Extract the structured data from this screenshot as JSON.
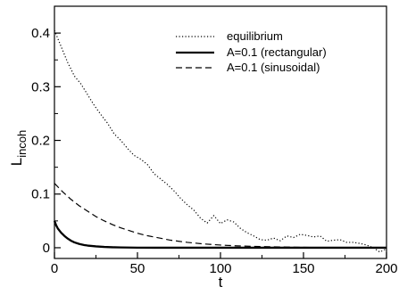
{
  "chart_data": {
    "type": "line",
    "title": "",
    "xlabel": "t",
    "ylabel": {
      "main": "L",
      "sub": "incoh"
    },
    "xlim": [
      0,
      200
    ],
    "ylim": [
      -0.02,
      0.45
    ],
    "xticks": [
      0,
      50,
      100,
      150,
      200
    ],
    "yticks": [
      0,
      0.1,
      0.2,
      0.3,
      0.4
    ],
    "xtick_labels": [
      "0",
      "50",
      "100",
      "150",
      "200"
    ],
    "ytick_labels": [
      "0",
      "0.1",
      "0.2",
      "0.3",
      "0.4"
    ],
    "grid": false,
    "legend_position": "top-right",
    "series": [
      {
        "name": "equilibrium",
        "style": "dotted",
        "color": "#000000",
        "x": [
          0,
          4,
          8,
          12,
          16,
          20,
          24,
          28,
          32,
          36,
          40,
          44,
          48,
          52,
          56,
          60,
          64,
          68,
          72,
          76,
          80,
          84,
          88,
          92,
          96,
          100,
          104,
          108,
          112,
          116,
          120,
          124,
          128,
          132,
          136,
          140,
          144,
          148,
          152,
          156,
          160,
          164,
          168,
          172,
          176,
          180,
          184,
          188,
          192,
          196,
          200
        ],
        "y": [
          0.405,
          0.375,
          0.345,
          0.32,
          0.305,
          0.285,
          0.265,
          0.248,
          0.232,
          0.212,
          0.2,
          0.185,
          0.172,
          0.165,
          0.155,
          0.138,
          0.128,
          0.118,
          0.106,
          0.092,
          0.08,
          0.07,
          0.055,
          0.046,
          0.06,
          0.045,
          0.052,
          0.048,
          0.036,
          0.028,
          0.022,
          0.015,
          0.014,
          0.018,
          0.013,
          0.022,
          0.019,
          0.025,
          0.023,
          0.02,
          0.022,
          0.012,
          0.014,
          0.015,
          0.01,
          0.01,
          0.008,
          0.005,
          0.0,
          -0.008,
          -0.002
        ]
      },
      {
        "name": "A=0.1 (rectangular)",
        "style": "solid",
        "color": "#000000",
        "x": [
          0,
          1,
          2,
          4,
          6,
          8,
          10,
          12,
          15,
          18,
          20,
          25,
          30,
          35,
          40,
          45,
          50,
          60,
          70,
          80,
          90,
          100,
          120,
          140,
          160,
          180,
          200
        ],
        "y": [
          0.05,
          0.042,
          0.036,
          0.028,
          0.022,
          0.017,
          0.013,
          0.01,
          0.007,
          0.005,
          0.004,
          0.0025,
          0.0015,
          0.0009,
          0.0005,
          0.0003,
          0.0002,
          0.0,
          0.0,
          0.0,
          0.0,
          0.0,
          0.0,
          0.0,
          0.0,
          0.0,
          0.0
        ]
      },
      {
        "name": "A=0.1 (sinusoidal)",
        "style": "dashed",
        "color": "#000000",
        "x": [
          0,
          5,
          10,
          15,
          20,
          25,
          30,
          35,
          40,
          45,
          50,
          55,
          60,
          65,
          70,
          75,
          80,
          85,
          90,
          95,
          100,
          110,
          120,
          130,
          140,
          150,
          160,
          170,
          180,
          190,
          200
        ],
        "y": [
          0.12,
          0.104,
          0.09,
          0.078,
          0.068,
          0.058,
          0.05,
          0.043,
          0.037,
          0.032,
          0.027,
          0.023,
          0.02,
          0.017,
          0.014,
          0.012,
          0.01,
          0.0085,
          0.007,
          0.006,
          0.005,
          0.0035,
          0.0025,
          0.0018,
          0.0012,
          0.0008,
          0.0005,
          0.0003,
          0.0002,
          0.0001,
          0.0
        ]
      }
    ]
  }
}
